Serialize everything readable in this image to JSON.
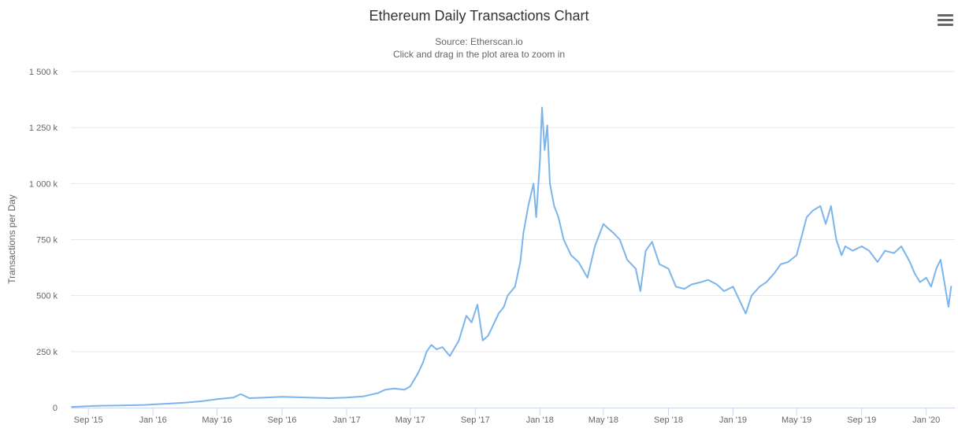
{
  "chart_data": {
    "type": "line",
    "title": "Ethereum Daily Transactions Chart",
    "subtitle": [
      "Source: Etherscan.io",
      "Click and drag in the plot area to zoom in"
    ],
    "xlabel": "",
    "ylabel": "Transactions per Day",
    "xlim": [
      "2015-07-30",
      "2020-02-24"
    ],
    "ylim": [
      0,
      1500000
    ],
    "y_ticks": [
      {
        "value": 0,
        "label": "0"
      },
      {
        "value": 250000,
        "label": "250 k"
      },
      {
        "value": 500000,
        "label": "500 k"
      },
      {
        "value": 750000,
        "label": "750 k"
      },
      {
        "value": 1000000,
        "label": "1 000 k"
      },
      {
        "value": 1250000,
        "label": "1 250 k"
      },
      {
        "value": 1500000,
        "label": "1 500 k"
      }
    ],
    "x_ticks": [
      {
        "date": "2015-09-01",
        "label": "Sep '15"
      },
      {
        "date": "2016-01-01",
        "label": "Jan '16"
      },
      {
        "date": "2016-05-01",
        "label": "May '16"
      },
      {
        "date": "2016-09-01",
        "label": "Sep '16"
      },
      {
        "date": "2017-01-01",
        "label": "Jan '17"
      },
      {
        "date": "2017-05-01",
        "label": "May '17"
      },
      {
        "date": "2017-09-01",
        "label": "Sep '17"
      },
      {
        "date": "2018-01-01",
        "label": "Jan '18"
      },
      {
        "date": "2018-05-01",
        "label": "May '18"
      },
      {
        "date": "2018-09-01",
        "label": "Sep '18"
      },
      {
        "date": "2019-01-01",
        "label": "Jan '19"
      },
      {
        "date": "2019-05-01",
        "label": "May '19"
      },
      {
        "date": "2019-09-01",
        "label": "Sep '19"
      },
      {
        "date": "2020-01-01",
        "label": "Jan '20"
      }
    ],
    "grid": "horizontal",
    "series": [
      {
        "color": "#7cb5ec",
        "points": [
          [
            "2015-08-01",
            3000
          ],
          [
            "2015-09-15",
            8000
          ],
          [
            "2015-11-01",
            10000
          ],
          [
            "2015-12-15",
            12000
          ],
          [
            "2016-01-01",
            14000
          ],
          [
            "2016-02-01",
            18000
          ],
          [
            "2016-03-01",
            22000
          ],
          [
            "2016-04-01",
            28000
          ],
          [
            "2016-05-01",
            38000
          ],
          [
            "2016-06-01",
            45000
          ],
          [
            "2016-06-15",
            60000
          ],
          [
            "2016-07-01",
            42000
          ],
          [
            "2016-08-01",
            45000
          ],
          [
            "2016-09-01",
            48000
          ],
          [
            "2016-10-01",
            46000
          ],
          [
            "2016-11-01",
            44000
          ],
          [
            "2016-12-01",
            42000
          ],
          [
            "2017-01-01",
            45000
          ],
          [
            "2017-02-01",
            50000
          ],
          [
            "2017-03-01",
            65000
          ],
          [
            "2017-03-15",
            80000
          ],
          [
            "2017-04-01",
            85000
          ],
          [
            "2017-04-20",
            80000
          ],
          [
            "2017-05-01",
            95000
          ],
          [
            "2017-05-15",
            150000
          ],
          [
            "2017-05-25",
            200000
          ],
          [
            "2017-06-01",
            250000
          ],
          [
            "2017-06-10",
            280000
          ],
          [
            "2017-06-20",
            260000
          ],
          [
            "2017-07-01",
            270000
          ],
          [
            "2017-07-15",
            230000
          ],
          [
            "2017-08-01",
            300000
          ],
          [
            "2017-08-15",
            410000
          ],
          [
            "2017-08-25",
            380000
          ],
          [
            "2017-09-05",
            460000
          ],
          [
            "2017-09-15",
            300000
          ],
          [
            "2017-09-25",
            320000
          ],
          [
            "2017-10-01",
            350000
          ],
          [
            "2017-10-15",
            420000
          ],
          [
            "2017-10-25",
            450000
          ],
          [
            "2017-11-01",
            500000
          ],
          [
            "2017-11-15",
            540000
          ],
          [
            "2017-11-25",
            650000
          ],
          [
            "2017-12-01",
            780000
          ],
          [
            "2017-12-10",
            900000
          ],
          [
            "2017-12-20",
            1000000
          ],
          [
            "2017-12-25",
            850000
          ],
          [
            "2018-01-01",
            1100000
          ],
          [
            "2018-01-05",
            1340000
          ],
          [
            "2018-01-10",
            1150000
          ],
          [
            "2018-01-15",
            1260000
          ],
          [
            "2018-01-20",
            1000000
          ],
          [
            "2018-01-28",
            900000
          ],
          [
            "2018-02-05",
            850000
          ],
          [
            "2018-02-15",
            750000
          ],
          [
            "2018-03-01",
            680000
          ],
          [
            "2018-03-15",
            650000
          ],
          [
            "2018-04-01",
            580000
          ],
          [
            "2018-04-15",
            720000
          ],
          [
            "2018-05-01",
            820000
          ],
          [
            "2018-05-10",
            800000
          ],
          [
            "2018-05-20",
            780000
          ],
          [
            "2018-06-01",
            750000
          ],
          [
            "2018-06-15",
            660000
          ],
          [
            "2018-07-01",
            620000
          ],
          [
            "2018-07-10",
            520000
          ],
          [
            "2018-07-20",
            700000
          ],
          [
            "2018-08-01",
            740000
          ],
          [
            "2018-08-15",
            640000
          ],
          [
            "2018-09-01",
            620000
          ],
          [
            "2018-09-15",
            540000
          ],
          [
            "2018-10-01",
            530000
          ],
          [
            "2018-10-15",
            550000
          ],
          [
            "2018-11-01",
            560000
          ],
          [
            "2018-11-15",
            570000
          ],
          [
            "2018-12-01",
            550000
          ],
          [
            "2018-12-15",
            520000
          ],
          [
            "2019-01-01",
            540000
          ],
          [
            "2019-01-15",
            470000
          ],
          [
            "2019-01-25",
            420000
          ],
          [
            "2019-02-05",
            500000
          ],
          [
            "2019-02-20",
            540000
          ],
          [
            "2019-03-05",
            560000
          ],
          [
            "2019-03-20",
            600000
          ],
          [
            "2019-04-01",
            640000
          ],
          [
            "2019-04-15",
            650000
          ],
          [
            "2019-05-01",
            680000
          ],
          [
            "2019-05-10",
            760000
          ],
          [
            "2019-05-20",
            850000
          ],
          [
            "2019-06-01",
            880000
          ],
          [
            "2019-06-15",
            900000
          ],
          [
            "2019-06-25",
            820000
          ],
          [
            "2019-07-05",
            900000
          ],
          [
            "2019-07-15",
            750000
          ],
          [
            "2019-07-25",
            680000
          ],
          [
            "2019-08-01",
            720000
          ],
          [
            "2019-08-15",
            700000
          ],
          [
            "2019-09-01",
            720000
          ],
          [
            "2019-09-15",
            700000
          ],
          [
            "2019-10-01",
            650000
          ],
          [
            "2019-10-15",
            700000
          ],
          [
            "2019-11-01",
            690000
          ],
          [
            "2019-11-15",
            720000
          ],
          [
            "2019-12-01",
            650000
          ],
          [
            "2019-12-10",
            600000
          ],
          [
            "2019-12-20",
            560000
          ],
          [
            "2020-01-01",
            580000
          ],
          [
            "2020-01-10",
            540000
          ],
          [
            "2020-01-20",
            620000
          ],
          [
            "2020-01-28",
            660000
          ],
          [
            "2020-02-05",
            550000
          ],
          [
            "2020-02-12",
            450000
          ],
          [
            "2020-02-17",
            540000
          ]
        ]
      }
    ]
  }
}
